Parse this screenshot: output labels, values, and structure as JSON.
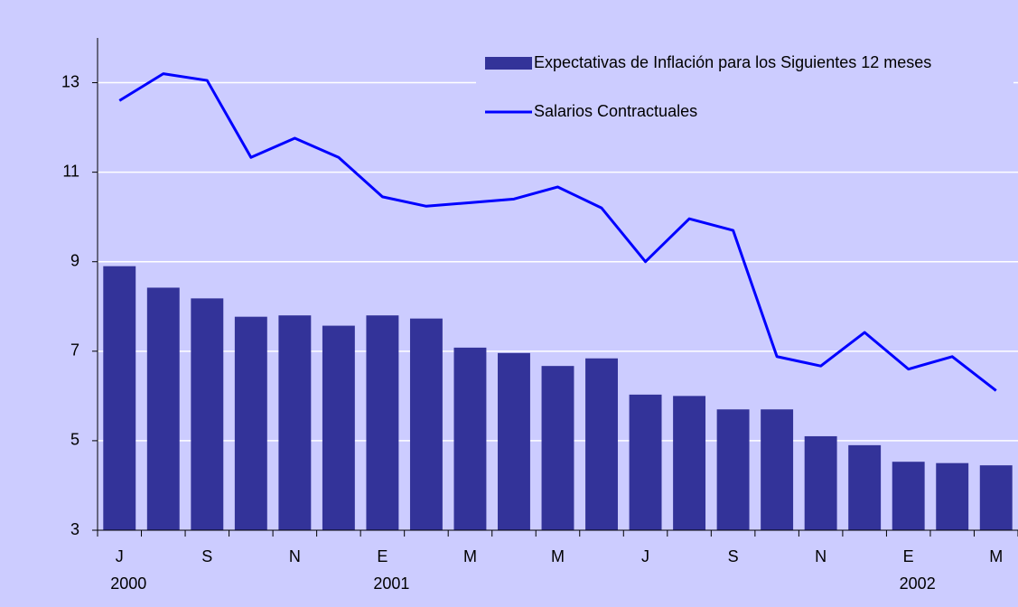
{
  "chart_data": {
    "type": "bar-line",
    "categories": [
      "J",
      null,
      "S",
      null,
      "N",
      null,
      "E",
      null,
      "M",
      null,
      "M",
      null,
      "J",
      null,
      "S",
      null,
      "N",
      null,
      "E",
      null,
      "M"
    ],
    "years": [
      "2000",
      null,
      null,
      null,
      null,
      null,
      "2001",
      null,
      null,
      null,
      null,
      null,
      null,
      null,
      null,
      null,
      null,
      null,
      "2002",
      null,
      null
    ],
    "series": [
      {
        "name": "Expectativas de Inflación para los Siguientes 12 meses",
        "type": "bar",
        "color": "#333399",
        "values": [
          8.9,
          8.42,
          8.18,
          7.77,
          7.8,
          7.57,
          7.8,
          7.73,
          7.08,
          6.96,
          6.67,
          6.84,
          6.03,
          6.0,
          5.7,
          5.7,
          5.1,
          4.9,
          4.53,
          4.5,
          4.45
        ]
      },
      {
        "name": "Salarios Contractuales",
        "type": "line",
        "color": "#0000ff",
        "values": [
          12.6,
          13.2,
          13.05,
          11.33,
          11.76,
          11.33,
          10.45,
          10.24,
          10.32,
          10.4,
          10.67,
          10.2,
          9.0,
          9.96,
          9.7,
          6.88,
          6.67,
          7.42,
          6.6,
          6.88,
          6.12
        ]
      }
    ],
    "ylim": [
      3,
      14
    ],
    "yticks": [
      3,
      5,
      7,
      9,
      11,
      13
    ],
    "grid": true,
    "legend": "top-right"
  }
}
